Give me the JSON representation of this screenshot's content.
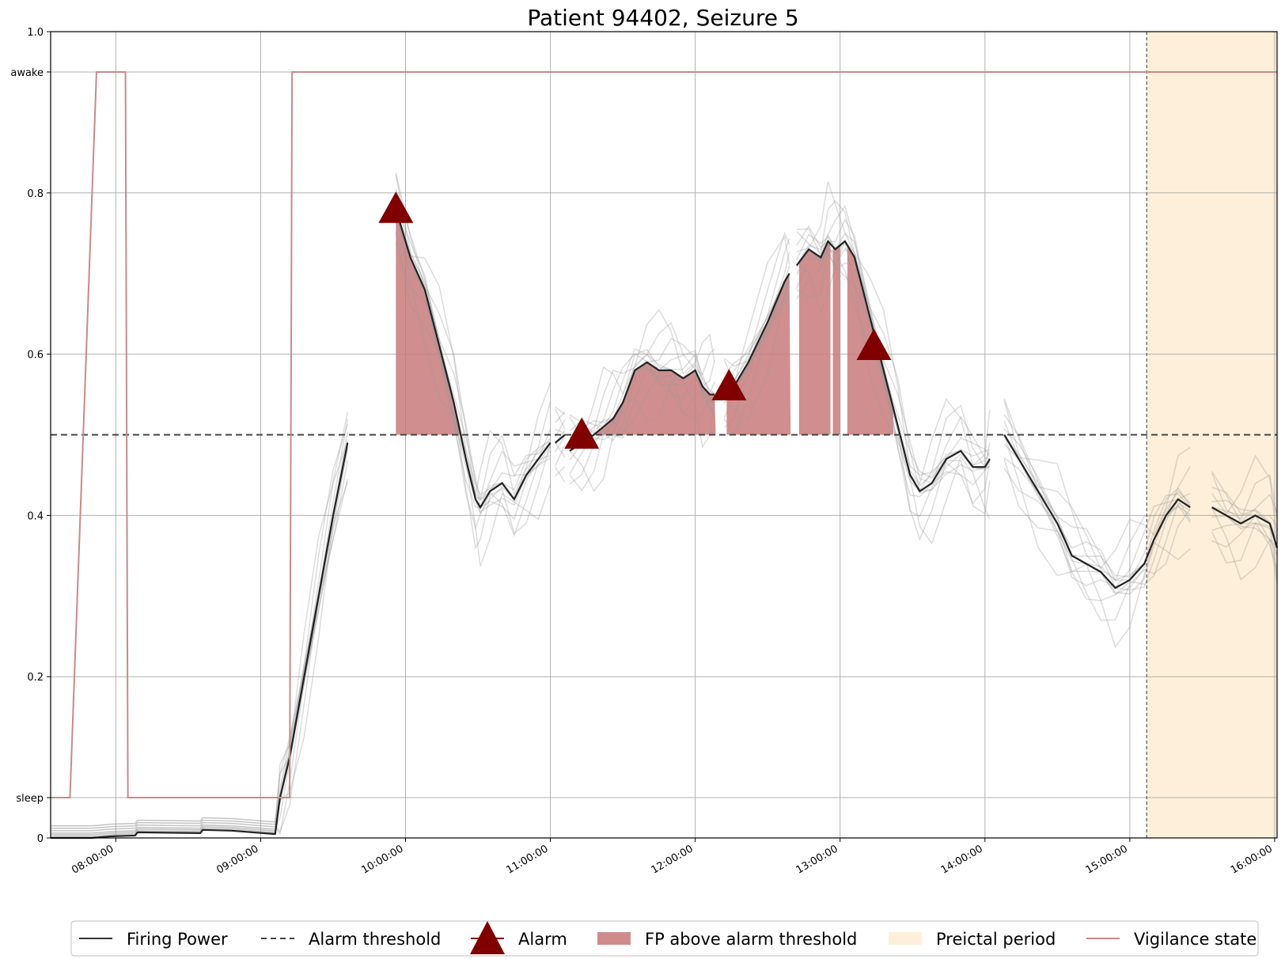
{
  "chart_data": {
    "type": "line",
    "title": "Patient 94402, Seizure 5",
    "xlabel": "",
    "ylabel": "",
    "x_type": "time",
    "xlim": [
      "07:33:00",
      "16:01:00"
    ],
    "ylim": [
      0,
      1.0
    ],
    "x_ticks": [
      "08:00:00",
      "09:00:00",
      "10:00:00",
      "11:00:00",
      "12:00:00",
      "13:00:00",
      "14:00:00",
      "15:00:00",
      "16:00:00"
    ],
    "y_ticks": [
      {
        "value": 0,
        "label": "0"
      },
      {
        "value": 0.05,
        "label": "sleep"
      },
      {
        "value": 0.2,
        "label": "0.2"
      },
      {
        "value": 0.4,
        "label": "0.4"
      },
      {
        "value": 0.6,
        "label": "0.6"
      },
      {
        "value": 0.8,
        "label": "0.8"
      },
      {
        "value": 0.95,
        "label": "awake"
      },
      {
        "value": 1.0,
        "label": "1.0"
      }
    ],
    "grid": true,
    "legend_position": "bottom",
    "alarm_threshold": 0.5,
    "preictal_period": {
      "start": "15:07:00",
      "end": "16:01:00"
    },
    "series": [
      {
        "name": "Firing Power",
        "kind": "line",
        "color": "#222222",
        "segments": [
          [
            [
              "07:33:00",
              0
            ],
            [
              "07:50:00",
              0.0
            ],
            [
              "07:58:00",
              0.002
            ],
            [
              "08:08:00",
              0.003
            ],
            [
              "08:09:00",
              0.007
            ],
            [
              "08:35:00",
              0.006
            ],
            [
              "08:36:00",
              0.01
            ],
            [
              "08:48:00",
              0.009
            ],
            [
              "09:05:00",
              0.005
            ],
            [
              "09:06:00",
              0.005
            ],
            [
              "09:08:00",
              0.05
            ],
            [
              "09:12:00",
              0.1
            ],
            [
              "09:18:00",
              0.2
            ],
            [
              "09:24:00",
              0.3
            ],
            [
              "09:30:00",
              0.4
            ],
            [
              "09:36:00",
              0.49
            ]
          ],
          [
            [
              "09:56:00",
              0.78
            ],
            [
              "10:02:00",
              0.72
            ],
            [
              "10:08:00",
              0.68
            ],
            [
              "10:14:00",
              0.61
            ],
            [
              "10:20:00",
              0.54
            ],
            [
              "10:25:00",
              0.47
            ],
            [
              "10:29:00",
              0.42
            ],
            [
              "10:31:00",
              0.41
            ],
            [
              "10:35:00",
              0.43
            ],
            [
              "10:40:00",
              0.44
            ],
            [
              "10:45:00",
              0.42
            ],
            [
              "10:50:00",
              0.45
            ],
            [
              "10:55:00",
              0.47
            ],
            [
              "11:00:00",
              0.49
            ]
          ],
          [
            [
              "11:02:00",
              0.49
            ],
            [
              "11:06:00",
              0.5
            ]
          ],
          [
            [
              "11:08:00",
              0.48
            ],
            [
              "11:13:00",
              0.49
            ],
            [
              "11:18:00",
              0.5
            ],
            [
              "11:22:00",
              0.51
            ],
            [
              "11:26:00",
              0.52
            ],
            [
              "11:30:00",
              0.54
            ],
            [
              "11:35:00",
              0.58
            ],
            [
              "11:40:00",
              0.59
            ],
            [
              "11:45:00",
              0.58
            ],
            [
              "11:50:00",
              0.58
            ],
            [
              "11:55:00",
              0.57
            ],
            [
              "12:00:00",
              0.58
            ],
            [
              "12:03:00",
              0.56
            ],
            [
              "12:06:00",
              0.55
            ],
            [
              "12:08:00",
              0.55
            ]
          ],
          [
            [
              "12:12:00",
              0.55
            ],
            [
              "12:16:00",
              0.56
            ],
            [
              "12:22:00",
              0.59
            ],
            [
              "12:30:00",
              0.64
            ],
            [
              "12:37:00",
              0.69
            ],
            [
              "12:39:00",
              0.7
            ]
          ],
          [
            [
              "12:42:00",
              0.71
            ],
            [
              "12:47:00",
              0.73
            ],
            [
              "12:52:00",
              0.72
            ],
            [
              "12:55:00",
              0.74
            ],
            [
              "12:58:00",
              0.73
            ],
            [
              "13:02:00",
              0.74
            ],
            [
              "13:06:00",
              0.72
            ],
            [
              "13:12:00",
              0.65
            ],
            [
              "13:18:00",
              0.58
            ],
            [
              "13:24:00",
              0.51
            ],
            [
              "13:29:00",
              0.45
            ],
            [
              "13:33:00",
              0.43
            ],
            [
              "13:38:00",
              0.44
            ],
            [
              "13:44:00",
              0.47
            ],
            [
              "13:50:00",
              0.48
            ],
            [
              "13:55:00",
              0.46
            ],
            [
              "14:00:00",
              0.46
            ],
            [
              "14:02:00",
              0.47
            ]
          ],
          [
            [
              "14:08:00",
              0.5
            ],
            [
              "14:14:00",
              0.47
            ],
            [
              "14:22:00",
              0.43
            ],
            [
              "14:30:00",
              0.39
            ],
            [
              "14:36:00",
              0.35
            ],
            [
              "14:42:00",
              0.34
            ],
            [
              "14:48:00",
              0.33
            ],
            [
              "14:54:00",
              0.31
            ],
            [
              "15:00:00",
              0.32
            ],
            [
              "15:06:00",
              0.34
            ],
            [
              "15:10:00",
              0.37
            ],
            [
              "15:15:00",
              0.4
            ],
            [
              "15:20:00",
              0.42
            ],
            [
              "15:25:00",
              0.41
            ]
          ],
          [
            [
              "15:34:00",
              0.41
            ],
            [
              "15:40:00",
              0.4
            ],
            [
              "15:46:00",
              0.39
            ],
            [
              "15:52:00",
              0.4
            ],
            [
              "15:58:00",
              0.39
            ],
            [
              "16:01:00",
              0.36
            ]
          ]
        ]
      },
      {
        "name": "Vigilance state",
        "kind": "line",
        "color": "#c98a8a",
        "points": [
          [
            "07:33:00",
            0.05
          ],
          [
            "07:41:00",
            0.05
          ],
          [
            "07:52:00",
            0.95
          ],
          [
            "08:04:00",
            0.95
          ],
          [
            "08:05:00",
            0.05
          ],
          [
            "09:12:00",
            0.05
          ],
          [
            "09:13:00",
            0.95
          ],
          [
            "16:01:00",
            0.95
          ]
        ]
      },
      {
        "name": "Alarm",
        "kind": "marker",
        "color": "#800000",
        "points": [
          [
            "09:56:00",
            0.78
          ],
          [
            "11:13:00",
            0.5
          ],
          [
            "12:14:00",
            0.56
          ],
          [
            "13:14:00",
            0.61
          ]
        ]
      }
    ],
    "fp_above_threshold": [
      [
        "09:56:00",
        "10:27:00"
      ],
      [
        "11:18:00",
        "12:09:00"
      ],
      [
        "12:13:00",
        "12:40:00"
      ],
      [
        "12:43:00",
        "12:56:00"
      ],
      [
        "12:57:00",
        "13:00:00"
      ],
      [
        "13:03:00",
        "13:22:00"
      ]
    ],
    "legend": [
      {
        "label": "Firing Power",
        "kind": "line-solid",
        "color": "#333333"
      },
      {
        "label": "Alarm threshold",
        "kind": "line-dashed",
        "color": "#444444"
      },
      {
        "label": "Alarm",
        "kind": "triangle",
        "color": "#800000"
      },
      {
        "label": "FP above alarm threshold",
        "kind": "patch",
        "color": "#cf8c8c"
      },
      {
        "label": "Preictal period",
        "kind": "patch",
        "color": "#fdefd9"
      },
      {
        "label": "Vigilance state",
        "kind": "line-solid",
        "color": "#c98a8a"
      }
    ],
    "colors": {
      "grid": "#b0b0b0",
      "fill_fp": "#c97a7a",
      "preictal": "#fdefd9",
      "threshold": "#444444",
      "vigilance": "#c98a8a",
      "alarm": "#800000",
      "fp_line": "#222222",
      "ensemble": "#9a9a9a"
    }
  }
}
